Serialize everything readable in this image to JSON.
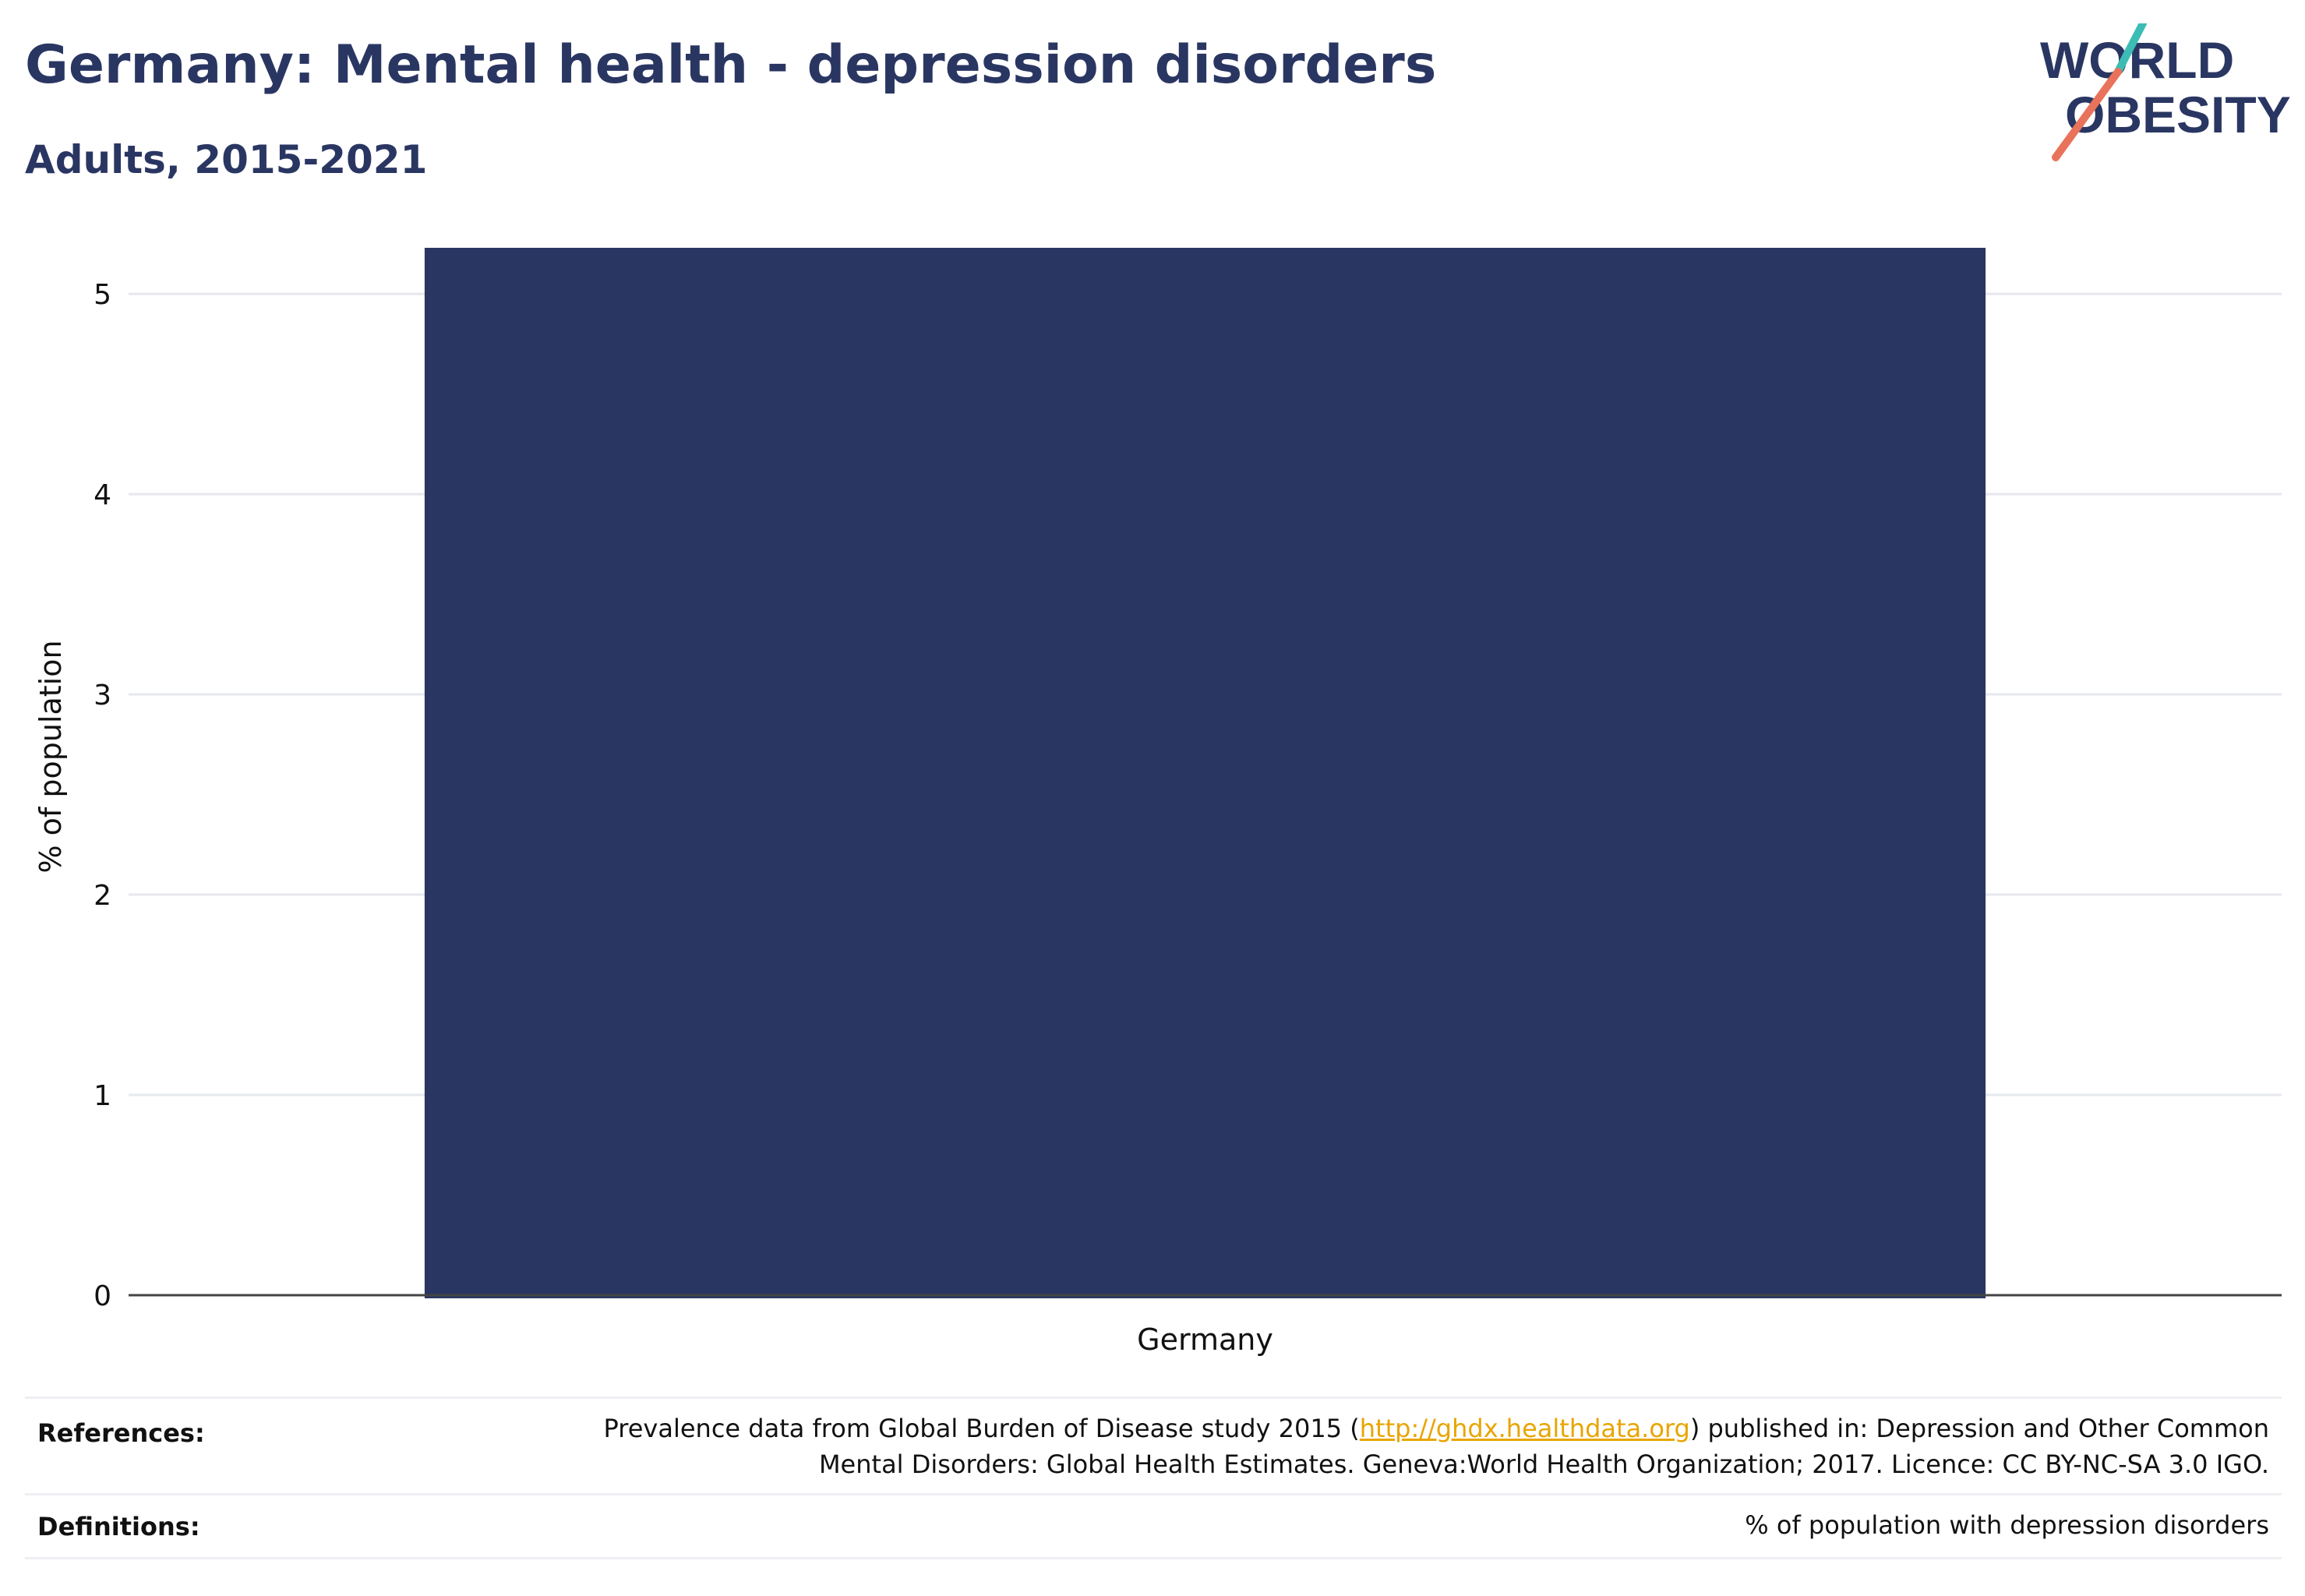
{
  "header": {
    "title": "Germany: Mental health - depression disorders",
    "subtitle": "Adults, 2015-2021"
  },
  "logo": {
    "line1": "WORLD",
    "line2": "OBESITY",
    "colors": {
      "text": "#2a3662",
      "slash_teal": "#3cbcb4",
      "slash_coral": "#e8735a"
    }
  },
  "chart_data": {
    "type": "bar",
    "categories": [
      "Germany"
    ],
    "values": [
      5.23
    ],
    "ylabel": "% of population",
    "xlabel": "",
    "ylim": [
      0,
      5.3
    ],
    "yticks": [
      0,
      1,
      2,
      3,
      4,
      5
    ],
    "grid": true,
    "bar_color": "#2a3662"
  },
  "footer": {
    "references_label": "References:",
    "references_text_before": "Prevalence data from Global Burden of Disease study 2015 (",
    "references_link": "http://ghdx.healthdata.org",
    "references_text_after": ") published in: Depression and Other Common",
    "references_line2": "Mental Disorders: Global Health Estimates. Geneva:World Health Organization; 2017. Licence: CC BY-NC-SA 3.0 IGO.",
    "definitions_label": "Definitions:",
    "definitions_text": "% of population with depression disorders"
  }
}
